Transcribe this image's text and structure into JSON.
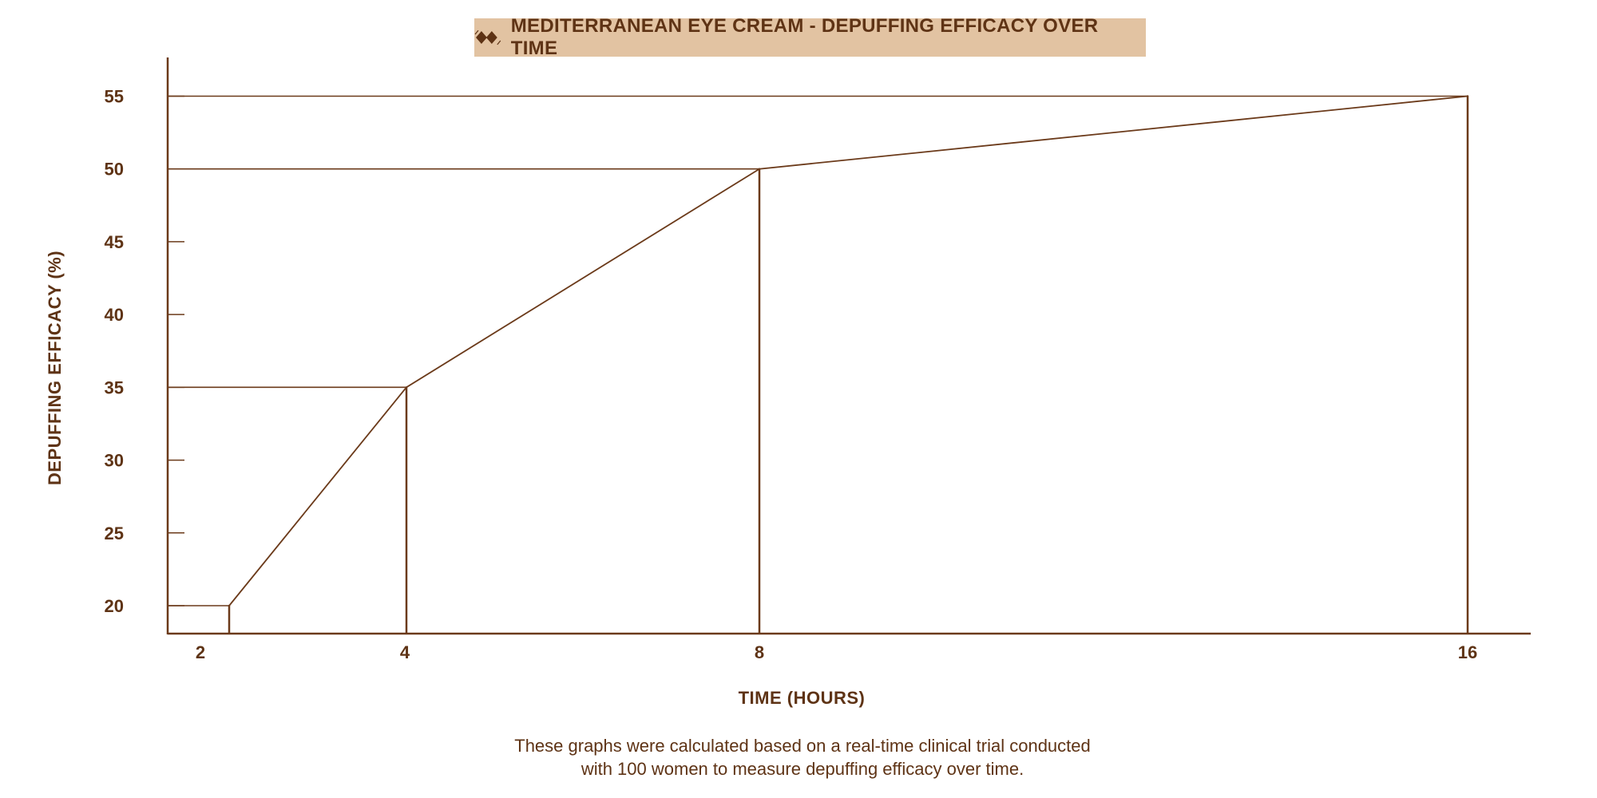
{
  "chart_data": {
    "type": "line",
    "title": "MEDITERRANEAN EYE CREAM - DEPUFFING EFFICACY OVER TIME",
    "xlabel": "TIME (HOURS)",
    "ylabel": "DEPUFFING EFFICACY (%)",
    "x": [
      2,
      4,
      8,
      16
    ],
    "series": [
      {
        "name": "Depuffing efficacy",
        "values": [
          20,
          35,
          50,
          55
        ]
      }
    ],
    "x_tick_labels": [
      "2",
      "4",
      "8",
      "16"
    ],
    "y_tick_labels": [
      "20",
      "25",
      "30",
      "35",
      "40",
      "45",
      "50",
      "55"
    ],
    "y_ticks": [
      20,
      25,
      30,
      35,
      40,
      45,
      50,
      55
    ],
    "ylim": [
      18,
      57
    ],
    "grid": false,
    "legend": "none",
    "color": "#6b3a1a"
  },
  "footnote": {
    "line1": "These graphs were calculated based on a real-time clinical trial conducted",
    "line2": "with 100 women to measure depuffing efficacy over time."
  }
}
